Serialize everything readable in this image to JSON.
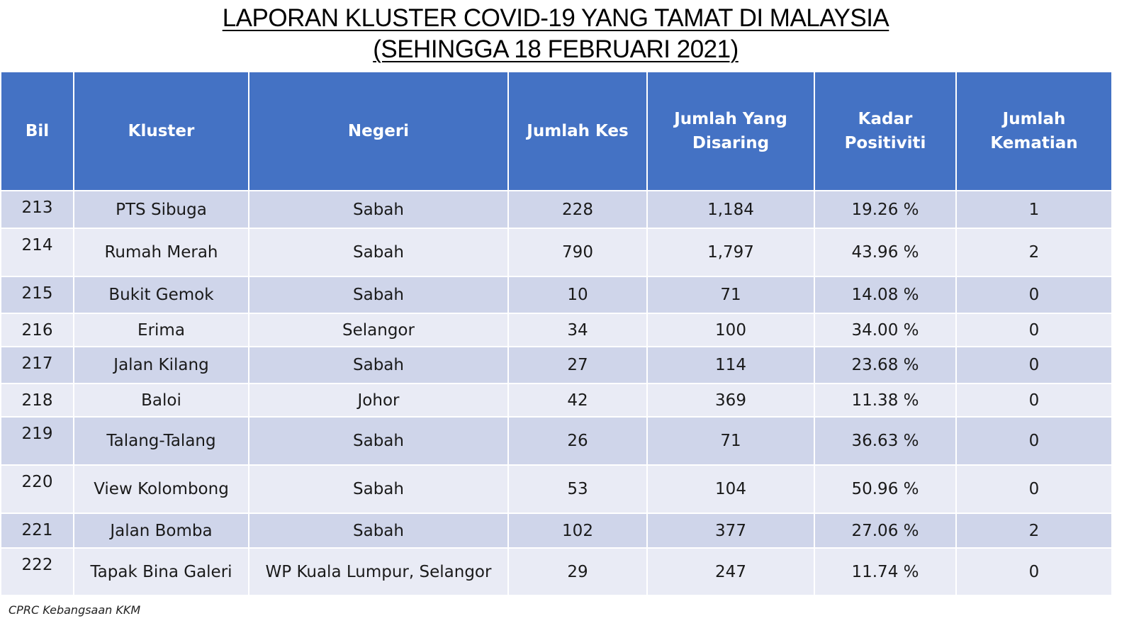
{
  "title": {
    "line1": "LAPORAN KLUSTER COVID-19 YANG TAMAT DI MALAYSIA",
    "line2": "(SEHINGGA  18 FEBRUARI 2021)"
  },
  "table": {
    "headers": [
      "Bil",
      "Kluster",
      "Negeri",
      "Jumlah Kes",
      "Jumlah Yang Disaring",
      "Kadar Positiviti",
      "Jumlah Kematian"
    ],
    "rows": [
      [
        "213",
        "PTS Sibuga",
        "Sabah",
        "228",
        "1,184",
        "19.26 %",
        "1"
      ],
      [
        "214",
        "Rumah Merah",
        "Sabah",
        "790",
        "1,797",
        "43.96 %",
        "2"
      ],
      [
        "215",
        "Bukit Gemok",
        "Sabah",
        "10",
        "71",
        "14.08 %",
        "0"
      ],
      [
        "216",
        "Erima",
        "Selangor",
        "34",
        "100",
        "34.00 %",
        "0"
      ],
      [
        "217",
        "Jalan Kilang",
        "Sabah",
        "27",
        "114",
        "23.68 %",
        "0"
      ],
      [
        "218",
        "Baloi",
        "Johor",
        "42",
        "369",
        "11.38 %",
        "0"
      ],
      [
        "219",
        "Talang-Talang",
        "Sabah",
        "26",
        "71",
        "36.63 %",
        "0"
      ],
      [
        "220",
        "View Kolombong",
        "Sabah",
        "53",
        "104",
        "50.96 %",
        "0"
      ],
      [
        "221",
        "Jalan Bomba",
        "Sabah",
        "102",
        "377",
        "27.06 %",
        "2"
      ],
      [
        "222",
        "Tapak Bina Galeri",
        "WP Kuala Lumpur, Selangor",
        "29",
        "247",
        "11.74 %",
        "0"
      ]
    ]
  },
  "footer": {
    "source": "CPRC Kebangsaan KKM"
  },
  "colors": {
    "header_bg": "#4472c4",
    "row_odd": "#cfd5ea",
    "row_even": "#e9ebf5"
  }
}
